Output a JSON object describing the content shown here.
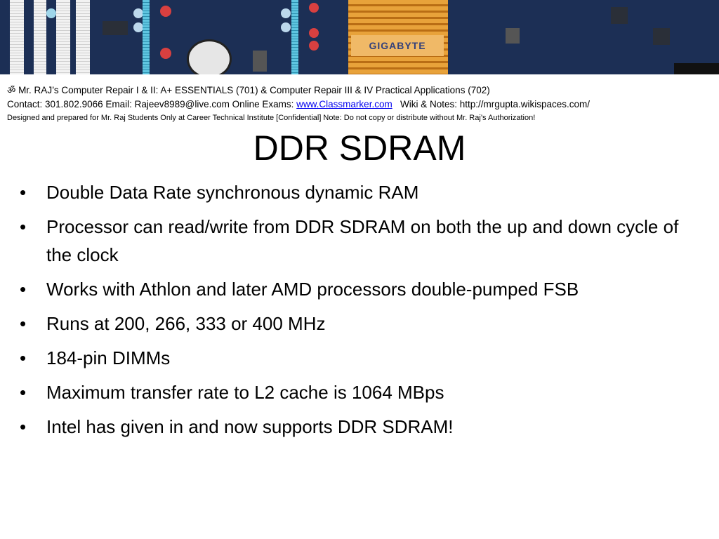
{
  "banner": {
    "brand_label": "GIGABYTE"
  },
  "header": {
    "line1": "ॐ Mr. RAJ’s Computer Repair I & II: A+ ESSENTIALS  (701) & Computer Repair III & IV Practical Applications (702)",
    "line2_prefix": "Contact: 301.802.9066 Email: Rajeev8989@live.com Online Exams: ",
    "line2_link": "www.Classmarker.com",
    "line2_suffix": "   Wiki & Notes: http://mrgupta.wikispaces.com/",
    "line3": "Designed and prepared for Mr. Raj Students Only at Career Technical Institute [Confidential] Note: Do not copy or distribute without Mr. Raj’s Authorization!"
  },
  "title": "DDR SDRAM",
  "bullet_char": "•",
  "bullets": [
    "Double Data Rate synchronous dynamic RAM",
    "Processor can read/write from DDR SDRAM on both the up and down cycle of the clock",
    "Works with Athlon and later AMD processors double-pumped FSB",
    "Runs at 200, 266, 333 or 400 MHz",
    "184-pin DIMMs",
    "Maximum transfer rate to L2 cache is 1064 MBps",
    "Intel has given in and now supports DDR SDRAM!"
  ]
}
